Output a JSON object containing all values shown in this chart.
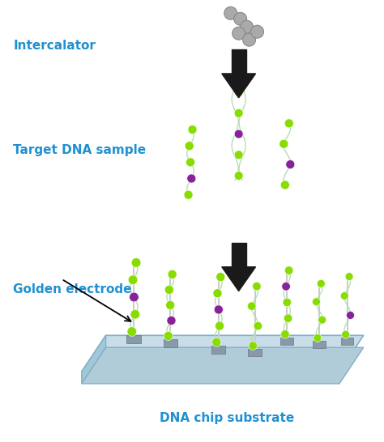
{
  "background_color": "#ffffff",
  "text_color_cyan": "#2090D0",
  "label_intercalator": "Intercalator",
  "label_target": "Target DNA sample",
  "label_electrode": "Golden electrode",
  "label_substrate": "DNA chip substrate",
  "green_color": "#88DD00",
  "purple_color": "#882299",
  "gray_ball_color": "#999999",
  "strand_line_color": "#aaddaa",
  "base_color": "#778899",
  "plate_top_color": "#c8dde8",
  "plate_side_color": "#a0c8d8",
  "plate_edge_color": "#80b0c8"
}
